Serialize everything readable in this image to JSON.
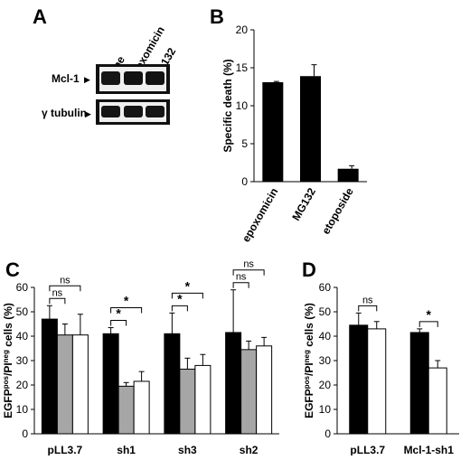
{
  "panels": {
    "A": {
      "letter": "A",
      "lanes": [
        "none",
        "epoxomicin",
        "MG132"
      ],
      "rows": [
        {
          "label": "Mcl-1",
          "arrow": "▶"
        },
        {
          "label": "γ tubulin",
          "arrow": "▶"
        }
      ]
    },
    "B": {
      "letter": "B"
    },
    "C": {
      "letter": "C"
    },
    "D": {
      "letter": "D"
    }
  },
  "chart_data": [
    {
      "panel": "B",
      "type": "bar",
      "categories": [
        "epoxomicin",
        "MG132",
        "etoposide"
      ],
      "values": [
        13.1,
        13.9,
        1.7
      ],
      "errors": [
        0.1,
        1.5,
        0.4
      ],
      "ylabel": "Specific death (%)",
      "ylim": [
        0,
        20
      ],
      "yticks": [
        0,
        5,
        10,
        15,
        20
      ],
      "bar_color": "#000000"
    },
    {
      "panel": "C",
      "type": "bar",
      "categories": [
        "pLL3.7",
        "sh1",
        "sh3",
        "sh2"
      ],
      "ylabel_html": "EGFP<tspan baseline-shift=\"super\" font-size=\"8\">pos</tspan>/PI<tspan baseline-shift=\"super\" font-size=\"8\">neg</tspan> cells (%)",
      "ylabel_parts": [
        "EGFP",
        "pos",
        "/PI",
        "neg",
        " cells (%)"
      ],
      "ylim": [
        0,
        60
      ],
      "yticks": [
        0,
        10,
        20,
        30,
        40,
        50,
        60
      ],
      "series": [
        {
          "fill": "#000000",
          "values": [
            47,
            41,
            41,
            41.5
          ],
          "errors": [
            5.5,
            2.5,
            8.5,
            17.5
          ]
        },
        {
          "fill": "#a6a6a6",
          "values": [
            40.5,
            19.5,
            26.5,
            34.5
          ],
          "errors": [
            4.5,
            1.5,
            4.5,
            3.5
          ]
        },
        {
          "fill": "#ffffff",
          "values": [
            40.5,
            21.5,
            28,
            36
          ],
          "errors": [
            8.5,
            4,
            4.5,
            3.5
          ]
        }
      ],
      "annotations": [
        {
          "group": 0,
          "from": 0,
          "to": 1,
          "text": "ns",
          "level": 0
        },
        {
          "group": 0,
          "from": 0,
          "to": 2,
          "text": "ns",
          "level": 1
        },
        {
          "group": 1,
          "from": 0,
          "to": 1,
          "text": "*",
          "level": 0
        },
        {
          "group": 1,
          "from": 0,
          "to": 2,
          "text": "*",
          "level": 1
        },
        {
          "group": 2,
          "from": 0,
          "to": 1,
          "text": "*",
          "level": 0
        },
        {
          "group": 2,
          "from": 0,
          "to": 2,
          "text": "*",
          "level": 1
        },
        {
          "group": 3,
          "from": 0,
          "to": 1,
          "text": "ns",
          "level": 0
        },
        {
          "group": 3,
          "from": 0,
          "to": 2,
          "text": "ns",
          "level": 1
        }
      ]
    },
    {
      "panel": "D",
      "type": "bar",
      "categories": [
        "pLL3.7",
        "Mcl-1-sh1"
      ],
      "ylabel_parts": [
        "EGFP",
        "pos",
        "/PI",
        "neg",
        " cells (%)"
      ],
      "ylim": [
        0,
        60
      ],
      "yticks": [
        0,
        10,
        20,
        30,
        40,
        50,
        60
      ],
      "series": [
        {
          "fill": "#000000",
          "values": [
            44.5,
            41.5
          ],
          "errors": [
            5,
            1.5
          ]
        },
        {
          "fill": "#ffffff",
          "values": [
            43,
            27
          ],
          "errors": [
            3,
            3
          ]
        }
      ],
      "annotations": [
        {
          "group": 0,
          "from": 0,
          "to": 1,
          "text": "ns",
          "level": 0
        },
        {
          "group": 1,
          "from": 0,
          "to": 1,
          "text": "*",
          "level": 0
        }
      ]
    }
  ]
}
